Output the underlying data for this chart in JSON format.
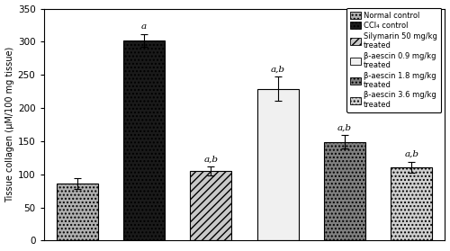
{
  "values": [
    86,
    302,
    105,
    229,
    149,
    111
  ],
  "errors": [
    8,
    10,
    7,
    18,
    10,
    8
  ],
  "annotations": [
    "",
    "a",
    "a,b",
    "a,b",
    "a,b",
    "a,b"
  ],
  "hatches": [
    "....",
    "....",
    "////",
    "====",
    "....",
    "...."
  ],
  "facecolors": [
    "#b0b0b0",
    "#1a1a1a",
    "#c8c8c8",
    "#f0f0f0",
    "#808080",
    "#d0d0d0"
  ],
  "edgecolors": [
    "#000000",
    "#000000",
    "#000000",
    "#000000",
    "#000000",
    "#000000"
  ],
  "ylabel": "Tissue collagen (μM/100 mg tissue)",
  "ylim": [
    0,
    350
  ],
  "yticks": [
    0,
    50,
    100,
    150,
    200,
    250,
    300,
    350
  ],
  "legend_labels": [
    "Normal control",
    "CCl₄ control",
    "Silymarin 50 mg/kg\ntreated",
    "β-aescin 0.9 mg/kg\ntreated",
    "β-aescin 1.8 mg/kg\ntreated",
    "β-aescin 3.6 mg/kg\ntreated"
  ],
  "legend_hatches": [
    "....",
    "....",
    "////",
    "====",
    "....",
    "...."
  ],
  "legend_facecolors": [
    "#b0b0b0",
    "#1a1a1a",
    "#c8c8c8",
    "#f0f0f0",
    "#808080",
    "#d0d0d0"
  ],
  "bar_edge_color": "#000000",
  "background_color": "#ffffff"
}
